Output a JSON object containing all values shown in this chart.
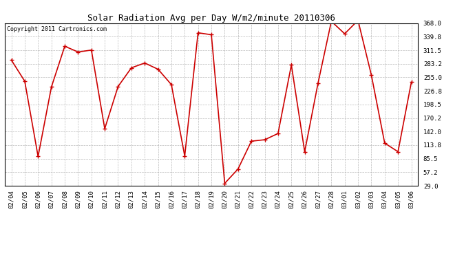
{
  "title": "Solar Radiation Avg per Day W/m2/minute 20110306",
  "copyright_text": "Copyright 2011 Cartronics.com",
  "dates": [
    "02/04",
    "02/05",
    "02/06",
    "02/07",
    "02/08",
    "02/09",
    "02/10",
    "02/11",
    "02/12",
    "02/13",
    "02/14",
    "02/15",
    "02/16",
    "02/17",
    "02/18",
    "02/19",
    "02/20",
    "02/21",
    "02/22",
    "02/23",
    "02/24",
    "02/25",
    "02/26",
    "02/27",
    "02/28",
    "03/01",
    "03/02",
    "03/03",
    "03/04",
    "03/05",
    "03/06"
  ],
  "values": [
    291.0,
    247.0,
    90.0,
    235.0,
    320.0,
    308.0,
    312.0,
    148.0,
    236.0,
    275.0,
    285.0,
    272.0,
    240.0,
    91.0,
    348.0,
    344.0,
    34.0,
    64.0,
    122.0,
    125.0,
    138.0,
    281.0,
    100.0,
    243.0,
    372.0,
    346.0,
    374.0,
    260.0,
    118.0,
    100.0,
    245.0
  ],
  "line_color": "#cc0000",
  "marker": "+",
  "marker_size": 4,
  "marker_linewidth": 1.0,
  "line_width": 1.2,
  "ylim_min": 29.0,
  "ylim_max": 368.0,
  "yticks": [
    29.0,
    57.2,
    85.5,
    113.8,
    142.0,
    170.2,
    198.5,
    226.8,
    255.0,
    283.2,
    311.5,
    339.8,
    368.0
  ],
  "background_color": "#ffffff",
  "plot_background": "#ffffff",
  "grid_color": "#aaaaaa",
  "title_fontsize": 9,
  "copyright_fontsize": 6,
  "tick_fontsize": 6.5
}
